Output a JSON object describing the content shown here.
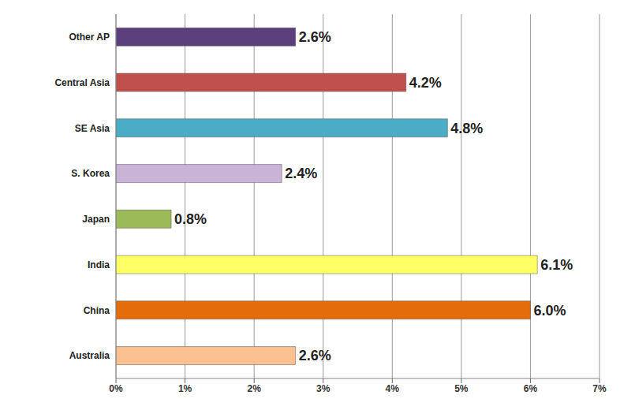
{
  "chart_data": {
    "type": "bar",
    "orientation": "horizontal",
    "categories": [
      "Other AP",
      "Central Asia",
      "SE Asia",
      "S. Korea",
      "Japan",
      "India",
      "China",
      "Australia"
    ],
    "values": [
      2.6,
      4.2,
      4.8,
      2.4,
      0.8,
      6.1,
      6.0,
      2.6
    ],
    "value_labels": [
      "2.6%",
      "4.2%",
      "4.8%",
      "2.4%",
      "0.8%",
      "6.1%",
      "6.0%",
      "2.6%"
    ],
    "colors": [
      "#5b3f7a",
      "#c0504d",
      "#4bacc6",
      "#c9b3d6",
      "#9bbb59",
      "#ffff66",
      "#e46c0a",
      "#fac090"
    ],
    "xlim": [
      0,
      7
    ],
    "xticks": [
      {
        "value": 0,
        "label": "0%"
      },
      {
        "value": 1,
        "label": "1%"
      },
      {
        "value": 2,
        "label": "2%"
      },
      {
        "value": 3,
        "label": "3%"
      },
      {
        "value": 4,
        "label": "4%"
      },
      {
        "value": 5,
        "label": "5%"
      },
      {
        "value": 6,
        "label": "6%"
      },
      {
        "value": 7,
        "label": "7%"
      }
    ],
    "grid": true,
    "data_labels": true
  }
}
